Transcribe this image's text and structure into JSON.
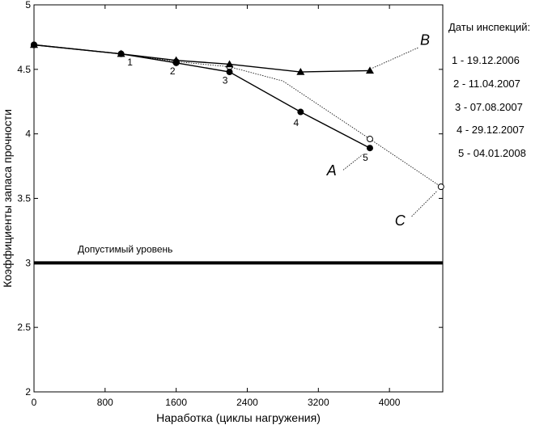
{
  "chart_data": {
    "type": "line",
    "xlabel": "Наработка (циклы нагружения)",
    "ylabel": "Коэффициенты запаса прочности",
    "xlim": [
      0,
      4600
    ],
    "ylim": [
      2,
      5
    ],
    "xticks": [
      0,
      800,
      1600,
      2400,
      3200,
      4000
    ],
    "xtick_labels": [
      "0",
      "800",
      "1600",
      "2400",
      "3200",
      "4000"
    ],
    "yticks": [
      2,
      2.5,
      3,
      3.5,
      4,
      4.5,
      5
    ],
    "ytick_labels": [
      "2",
      "2.5",
      "3",
      "3.5",
      "4",
      "4.5",
      "5"
    ],
    "series": [
      {
        "name": "A",
        "marker": "circle-filled",
        "x": [
          0,
          980,
          1600,
          2200,
          3000,
          3780
        ],
        "y": [
          4.69,
          4.62,
          4.55,
          4.48,
          4.17,
          3.89
        ]
      },
      {
        "name": "B",
        "marker": "triangle-filled",
        "x": [
          0,
          980,
          1600,
          2200,
          3000,
          3780
        ],
        "y": [
          4.69,
          4.62,
          4.57,
          4.54,
          4.48,
          4.49
        ]
      },
      {
        "name": "C",
        "marker": "circle-open",
        "x": [
          0,
          980,
          1600,
          2200,
          2800,
          3780,
          4580
        ],
        "y": [
          4.69,
          4.62,
          4.56,
          4.52,
          4.41,
          3.96,
          3.59
        ]
      }
    ],
    "reference_line": {
      "label": "Допустимый уровень",
      "y": 3
    },
    "point_labels": [
      {
        "text": "1",
        "x": 1080,
        "y": 4.53
      },
      {
        "text": "2",
        "x": 1560,
        "y": 4.46
      },
      {
        "text": "3",
        "x": 2150,
        "y": 4.39
      },
      {
        "text": "4",
        "x": 2950,
        "y": 4.06
      },
      {
        "text": "5",
        "x": 3730,
        "y": 3.79
      }
    ],
    "series_labels": [
      {
        "text": "A",
        "x": 3350,
        "y": 3.68
      },
      {
        "text": "B",
        "x": 4400,
        "y": 4.69
      },
      {
        "text": "C",
        "x": 4120,
        "y": 3.29
      }
    ],
    "legend": {
      "title": "Даты инспекций:",
      "items": [
        "1 - 19.12.2006",
        "2 - 11.04.2007",
        "3 - 07.08.2007",
        "4 - 29.12.2007",
        "5 - 04.01.2008"
      ],
      "position": "right"
    }
  }
}
